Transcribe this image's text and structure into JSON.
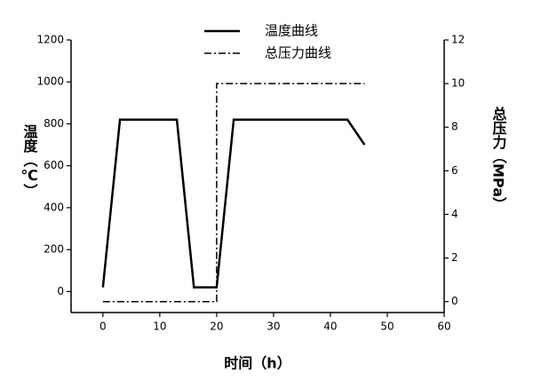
{
  "chart_data": {
    "type": "line",
    "x_label": "时间（h）",
    "y_label": "温度（℃）",
    "y2_label": "总压力（MPa）",
    "xlim": [
      -5.6,
      60
    ],
    "xticks": [
      0,
      10,
      20,
      30,
      40,
      50,
      60
    ],
    "ylim": [
      -100,
      1200
    ],
    "yticks": [
      0,
      200,
      400,
      600,
      800,
      1000,
      1200
    ],
    "y2lim": [
      -0.5,
      12
    ],
    "y2ticks": [
      0,
      2,
      4,
      6,
      8,
      10,
      12
    ],
    "legend": "top",
    "series": [
      {
        "name": "温度曲线",
        "color": "#000000",
        "style": "solid",
        "x": [
          0,
          3,
          13,
          16,
          20,
          23,
          43,
          46
        ],
        "values": [
          20,
          820,
          820,
          20,
          20,
          820,
          820,
          700
        ]
      },
      {
        "name": "总压力曲线",
        "color": "#000000",
        "style": "dashdot",
        "axis": "y2",
        "x": [
          0,
          20,
          20,
          46
        ],
        "values": [
          0,
          0,
          10,
          10
        ]
      }
    ]
  }
}
